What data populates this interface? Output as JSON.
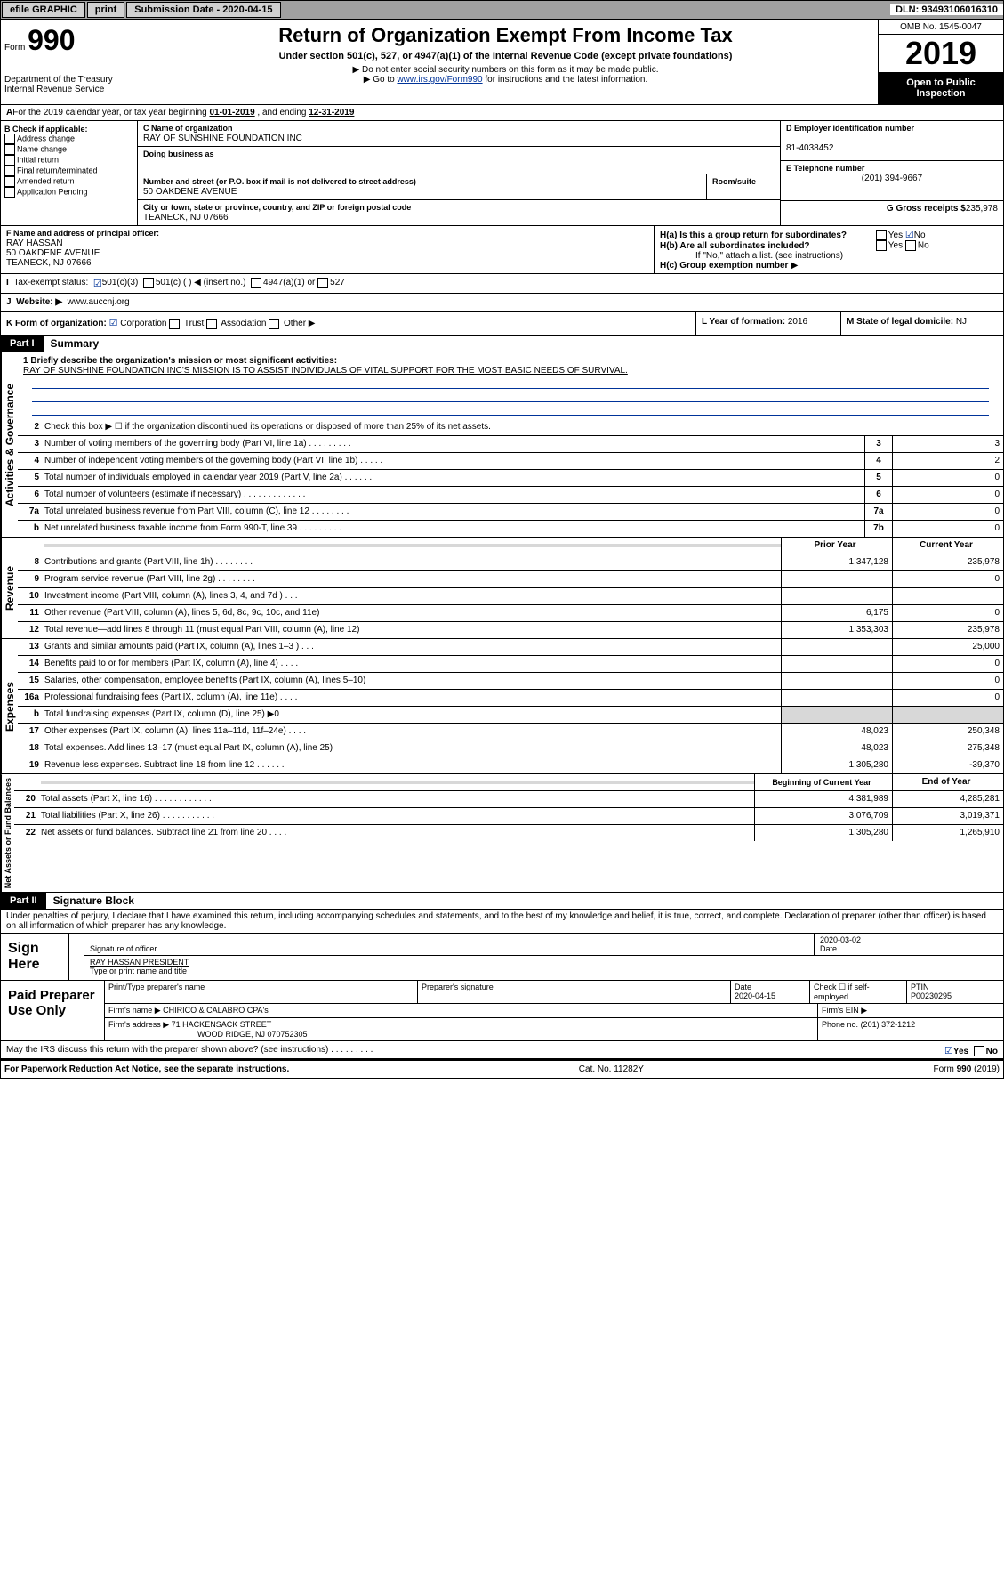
{
  "top_bar": {
    "efile_label": "efile GRAPHIC",
    "print_btn": "print",
    "submission_label": "Submission Date - 2020-04-15",
    "dln": "DLN: 93493106016310"
  },
  "header": {
    "form_label": "Form",
    "form_number": "990",
    "dept": "Department of the Treasury",
    "irs": "Internal Revenue Service",
    "title": "Return of Organization Exempt From Income Tax",
    "subtitle": "Under section 501(c), 527, or 4947(a)(1) of the Internal Revenue Code (except private foundations)",
    "inst1": "▶ Do not enter social security numbers on this form as it may be made public.",
    "inst2_pre": "▶ Go to ",
    "inst2_link": "www.irs.gov/Form990",
    "inst2_post": " for instructions and the latest information.",
    "omb": "OMB No. 1545-0047",
    "year": "2019",
    "inspection": "Open to Public Inspection"
  },
  "period": {
    "text_pre": "For the 2019 calendar year, or tax year beginning ",
    "begin": "01-01-2019",
    "mid": " , and ending ",
    "end": "12-31-2019"
  },
  "section_b": {
    "label": "B Check if applicable:",
    "opts": [
      "Address change",
      "Name change",
      "Initial return",
      "Final return/terminated",
      "Amended return",
      "Application Pending"
    ]
  },
  "section_c": {
    "name_label": "C Name of organization",
    "name": "RAY OF SUNSHINE FOUNDATION INC",
    "dba_label": "Doing business as",
    "addr_label": "Number and street (or P.O. box if mail is not delivered to street address)",
    "room_label": "Room/suite",
    "addr": "50 OAKDENE AVENUE",
    "city_label": "City or town, state or province, country, and ZIP or foreign postal code",
    "city": "TEANECK, NJ  07666"
  },
  "section_d": {
    "label": "D Employer identification number",
    "val": "81-4038452"
  },
  "section_e": {
    "label": "E Telephone number",
    "val": "(201) 394-9667"
  },
  "section_g": {
    "label": "G Gross receipts $",
    "val": "235,978"
  },
  "section_f": {
    "label": "F Name and address of principal officer:",
    "name": "RAY HASSAN",
    "addr1": "50 OAKDENE AVENUE",
    "addr2": "TEANECK, NJ  07666"
  },
  "section_h": {
    "ha": "H(a)  Is this a group return for subordinates?",
    "hb": "H(b)  Are all subordinates included?",
    "hb_note": "If \"No,\" attach a list. (see instructions)",
    "hc": "H(c)  Group exemption number ▶",
    "yes": "Yes",
    "no": "No"
  },
  "tax_status": {
    "label": "Tax-exempt status:",
    "opt1": "501(c)(3)",
    "opt2": "501(c) (   ) ◀ (insert no.)",
    "opt3": "4947(a)(1) or",
    "opt4": "527"
  },
  "section_j": {
    "label": "Website: ▶",
    "val": "www.auccnj.org"
  },
  "section_k": {
    "label": "K Form of organization:",
    "corp": "Corporation",
    "trust": "Trust",
    "assoc": "Association",
    "other": "Other ▶"
  },
  "section_l": {
    "label": "L Year of formation:",
    "val": "2016"
  },
  "section_m": {
    "label": "M State of legal domicile:",
    "val": "NJ"
  },
  "part1": {
    "tab": "Part I",
    "title": "Summary"
  },
  "mission": {
    "line1_label": "1  Briefly describe the organization's mission or most significant activities:",
    "text": "RAY OF SUNSHINE FOUNDATION INC'S MISSION IS TO ASSIST INDIVIDUALS OF VITAL SUPPORT FOR THE MOST BASIC NEEDS OF SURVIVAL."
  },
  "governance": {
    "label": "Activities & Governance",
    "rows": [
      {
        "n": "2",
        "t": "Check this box ▶ ☐ if the organization discontinued its operations or disposed of more than 25% of its net assets."
      },
      {
        "n": "3",
        "t": "Number of voting members of the governing body (Part VI, line 1a)  .   .   .   .   .   .   .   .   .",
        "c": "3",
        "v": "3"
      },
      {
        "n": "4",
        "t": "Number of independent voting members of the governing body (Part VI, line 1b)  .   .   .   .   .",
        "c": "4",
        "v": "2"
      },
      {
        "n": "5",
        "t": "Total number of individuals employed in calendar year 2019 (Part V, line 2a)  .   .   .   .   .   .",
        "c": "5",
        "v": "0"
      },
      {
        "n": "6",
        "t": "Total number of volunteers (estimate if necessary)  .   .   .   .   .   .   .   .   .   .   .   .   .",
        "c": "6",
        "v": "0"
      },
      {
        "n": "7a",
        "t": "Total unrelated business revenue from Part VIII, column (C), line 12  .   .   .   .   .   .   .   .",
        "c": "7a",
        "v": "0"
      },
      {
        "n": "b",
        "t": "Net unrelated business taxable income from Form 990-T, line 39  .   .   .   .   .   .   .   .   .",
        "c": "7b",
        "v": "0"
      }
    ]
  },
  "rev_hdr": {
    "prior": "Prior Year",
    "current": "Current Year"
  },
  "revenue": {
    "label": "Revenue",
    "rows": [
      {
        "n": "8",
        "t": "Contributions and grants (Part VIII, line 1h)  .   .   .   .   .   .   .   .",
        "p": "1,347,128",
        "c": "235,978"
      },
      {
        "n": "9",
        "t": "Program service revenue (Part VIII, line 2g)   .   .   .   .   .   .   .   .",
        "p": "",
        "c": "0"
      },
      {
        "n": "10",
        "t": "Investment income (Part VIII, column (A), lines 3, 4, and 7d )   .   .   .",
        "p": "",
        "c": ""
      },
      {
        "n": "11",
        "t": "Other revenue (Part VIII, column (A), lines 5, 6d, 8c, 9c, 10c, and 11e)",
        "p": "6,175",
        "c": "0"
      },
      {
        "n": "12",
        "t": "Total revenue—add lines 8 through 11 (must equal Part VIII, column (A), line 12)",
        "p": "1,353,303",
        "c": "235,978"
      }
    ]
  },
  "expenses": {
    "label": "Expenses",
    "rows": [
      {
        "n": "13",
        "t": "Grants and similar amounts paid (Part IX, column (A), lines 1–3 )  .   .   .",
        "p": "",
        "c": "25,000"
      },
      {
        "n": "14",
        "t": "Benefits paid to or for members (Part IX, column (A), line 4)  .   .   .   .",
        "p": "",
        "c": "0"
      },
      {
        "n": "15",
        "t": "Salaries, other compensation, employee benefits (Part IX, column (A), lines 5–10)",
        "p": "",
        "c": "0"
      },
      {
        "n": "16a",
        "t": "Professional fundraising fees (Part IX, column (A), line 11e)  .   .   .   .",
        "p": "",
        "c": "0"
      },
      {
        "n": "b",
        "t": "Total fundraising expenses (Part IX, column (D), line 25) ▶0",
        "p": "shaded",
        "c": "shaded"
      },
      {
        "n": "17",
        "t": "Other expenses (Part IX, column (A), lines 11a–11d, 11f–24e)  .   .   .   .",
        "p": "48,023",
        "c": "250,348"
      },
      {
        "n": "18",
        "t": "Total expenses. Add lines 13–17 (must equal Part IX, column (A), line 25)",
        "p": "48,023",
        "c": "275,348"
      },
      {
        "n": "19",
        "t": "Revenue less expenses. Subtract line 18 from line 12  .   .   .   .   .   .",
        "p": "1,305,280",
        "c": "-39,370"
      }
    ]
  },
  "net_hdr": {
    "begin": "Beginning of Current Year",
    "end": "End of Year"
  },
  "netassets": {
    "label": "Net Assets or Fund Balances",
    "rows": [
      {
        "n": "20",
        "t": "Total assets (Part X, line 16)  .   .   .   .   .   .   .   .   .   .   .   .",
        "p": "4,381,989",
        "c": "4,285,281"
      },
      {
        "n": "21",
        "t": "Total liabilities (Part X, line 26)  .   .   .   .   .   .   .   .   .   .   .",
        "p": "3,076,709",
        "c": "3,019,371"
      },
      {
        "n": "22",
        "t": "Net assets or fund balances. Subtract line 21 from line 20  .   .   .   .",
        "p": "1,305,280",
        "c": "1,265,910"
      }
    ]
  },
  "part2": {
    "tab": "Part II",
    "title": "Signature Block"
  },
  "perjury": "Under penalties of perjury, I declare that I have examined this return, including accompanying schedules and statements, and to the best of my knowledge and belief, it is true, correct, and complete. Declaration of preparer (other than officer) is based on all information of which preparer has any knowledge.",
  "sign": {
    "here": "Sign Here",
    "sig_label": "Signature of officer",
    "date_label": "Date",
    "date": "2020-03-02",
    "name": "RAY HASSAN  PRESIDENT",
    "name_label": "Type or print name and title"
  },
  "preparer": {
    "label": "Paid Preparer Use Only",
    "print_label": "Print/Type preparer's name",
    "sig_label": "Preparer's signature",
    "date_label": "Date",
    "date": "2020-04-15",
    "check_label": "Check ☐ if self-employed",
    "ptin_label": "PTIN",
    "ptin": "P00230295",
    "firm_name_label": "Firm's name    ▶",
    "firm_name": "CHIRICO & CALABRO CPA's",
    "ein_label": "Firm's EIN ▶",
    "addr_label": "Firm's address ▶",
    "addr1": "71 HACKENSACK STREET",
    "addr2": "WOOD RIDGE, NJ  070752305",
    "phone_label": "Phone no.",
    "phone": "(201) 372-1212"
  },
  "discuss": {
    "text": "May the IRS discuss this return with the preparer shown above? (see instructions)   .   .   .   .   .   .   .   .   .",
    "yes": "Yes",
    "no": "No"
  },
  "footer": {
    "pra": "For Paperwork Reduction Act Notice, see the separate instructions.",
    "cat": "Cat. No. 11282Y",
    "form": "Form 990 (2019)"
  }
}
